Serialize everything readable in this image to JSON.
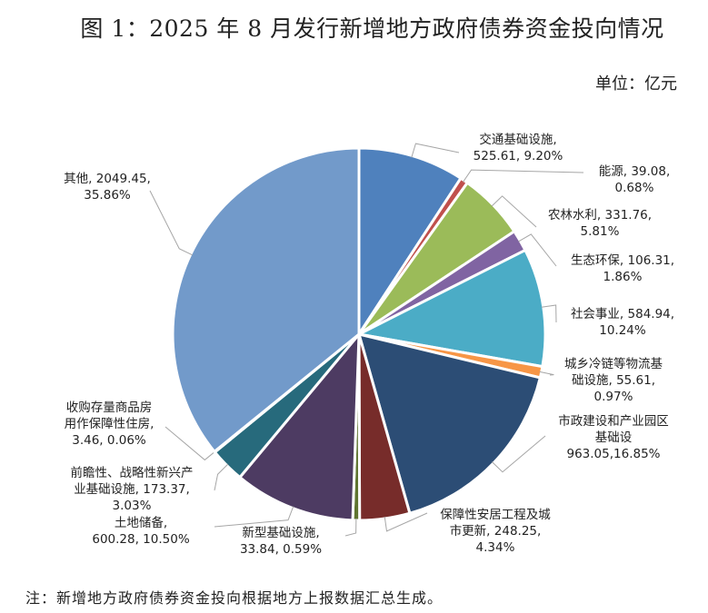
{
  "chart_data": {
    "type": "pie",
    "title": "图 1：2025 年 8 月发行新增地方政府债券资金投向情况",
    "unit": "单位：亿元",
    "note": "注：新增地方政府债券资金投向根据地方上报数据汇总生成。",
    "start": "top",
    "direction": "clockwise",
    "slices": [
      {
        "name": "交通基础设施",
        "value": 525.61,
        "percent": "9.20%",
        "color": "#4F81BD",
        "label": [
          "交通基础设施,",
          "525.61, 9.20%"
        ]
      },
      {
        "name": "能源",
        "value": 39.08,
        "percent": "0.68%",
        "color": "#C0504D",
        "label": [
          "能源, 39.08,",
          "0.68%"
        ]
      },
      {
        "name": "农林水利",
        "value": 331.76,
        "percent": "5.81%",
        "color": "#9BBB59",
        "label": [
          "农林水利, 331.76,",
          "5.81%"
        ]
      },
      {
        "name": "生态环保",
        "value": 106.31,
        "percent": "1.86%",
        "color": "#8064A2",
        "label": [
          "生态环保, 106.31,",
          "1.86%"
        ]
      },
      {
        "name": "社会事业",
        "value": 584.94,
        "percent": "10.24%",
        "color": "#4BACC6",
        "label": [
          "社会事业, 584.94,",
          "10.24%"
        ]
      },
      {
        "name": "城乡冷链等物流基础设施",
        "value": 55.61,
        "percent": "0.97%",
        "color": "#F79646",
        "label": [
          "城乡冷链等物流基",
          "础设施, 55.61,",
          "0.97%"
        ]
      },
      {
        "name": "市政建设和产业园区基础设",
        "value": 963.05,
        "percent": "16.85%",
        "color": "#2C4D75",
        "label": [
          "市政建设和产业园区",
          "基础设",
          "963.05,16.85%"
        ]
      },
      {
        "name": "保障性安居工程及城市更新",
        "value": 248.25,
        "percent": "4.34%",
        "color": "#772C2A",
        "label": [
          "保障性安居工程及城",
          "市更新, 248.25,",
          "4.34%"
        ]
      },
      {
        "name": "新型基础设施",
        "value": 33.84,
        "percent": "0.59%",
        "color": "#5F7530",
        "label": [
          "新型基础设施,",
          "33.84, 0.59%"
        ]
      },
      {
        "name": "土地储备",
        "value": 600.28,
        "percent": "10.50%",
        "color": "#4D3B62",
        "label": [
          "土地储备,",
          "600.28, 10.50%"
        ]
      },
      {
        "name": "前瞻性、战略性新兴产业基础设施",
        "value": 173.37,
        "percent": "3.03%",
        "color": "#276A7C",
        "label": [
          "前瞻性、战略性新兴产",
          "业基础设施, 173.37,",
          "3.03%"
        ]
      },
      {
        "name": "收购存量商品房用作保障性住房",
        "value": 3.46,
        "percent": "0.06%",
        "color": "#B65708",
        "label": [
          "收购存量商品房",
          "用作保障性住房,",
          "3.46, 0.06%"
        ]
      },
      {
        "name": "其他",
        "value": 2049.45,
        "percent": "35.86%",
        "color": "#729ACA",
        "label": [
          "其他, 2049.45,",
          "35.86%"
        ]
      }
    ]
  }
}
